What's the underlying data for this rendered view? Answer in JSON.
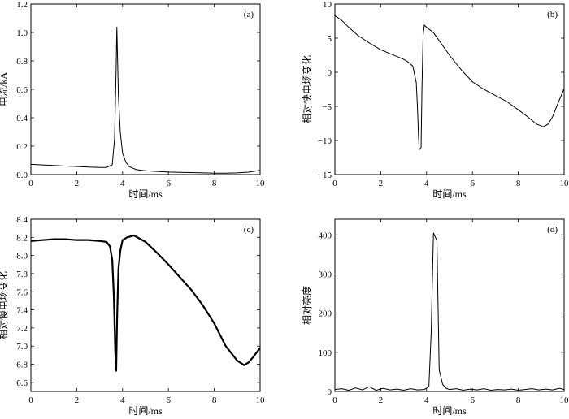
{
  "chart_data": [
    {
      "id": "a",
      "type": "line",
      "label": "(a)",
      "xlabel": "时间/ms",
      "ylabel": "电流/kA",
      "xlim": [
        0,
        10
      ],
      "ylim": [
        0,
        1.2
      ],
      "xticks": [
        0,
        2,
        4,
        6,
        8,
        10
      ],
      "yticks": [
        0.0,
        0.2,
        0.4,
        0.6,
        0.8,
        1.0,
        1.2
      ],
      "ytick_labels": [
        "0.0",
        "0.2",
        "0.4",
        "0.6",
        "0.8",
        "1.0",
        "1.2"
      ],
      "x": [
        0,
        0.5,
        1,
        1.5,
        2,
        2.5,
        3,
        3.3,
        3.55,
        3.65,
        3.72,
        3.75,
        3.78,
        3.82,
        3.9,
        4.0,
        4.15,
        4.3,
        4.6,
        5.0,
        5.5,
        6,
        6.5,
        7,
        7.5,
        8,
        8.5,
        9,
        9.5,
        10
      ],
      "y": [
        0.072,
        0.068,
        0.064,
        0.06,
        0.057,
        0.053,
        0.05,
        0.05,
        0.07,
        0.25,
        0.75,
        1.04,
        0.82,
        0.55,
        0.3,
        0.15,
        0.085,
        0.055,
        0.035,
        0.027,
        0.022,
        0.018,
        0.016,
        0.014,
        0.012,
        0.01,
        0.01,
        0.012,
        0.017,
        0.03
      ]
    },
    {
      "id": "b",
      "type": "line",
      "label": "(b)",
      "xlabel": "时间/ms",
      "ylabel": "相对快电场变化",
      "xlim": [
        0,
        10
      ],
      "ylim": [
        -15,
        10
      ],
      "xticks": [
        0,
        2,
        4,
        6,
        8,
        10
      ],
      "yticks": [
        -15,
        -10,
        -5,
        0,
        5,
        10
      ],
      "ytick_labels": [
        "−15",
        "−10",
        "−5",
        "0",
        "5",
        "10"
      ],
      "x": [
        0,
        0.3,
        0.6,
        1,
        1.5,
        2,
        2.5,
        3,
        3.2,
        3.4,
        3.55,
        3.6,
        3.65,
        3.68,
        3.72,
        3.76,
        3.8,
        3.85,
        3.9,
        4.0,
        4.3,
        4.6,
        5.0,
        5.5,
        6,
        6.5,
        7,
        7.5,
        8,
        8.4,
        8.8,
        9.1,
        9.3,
        9.5,
        9.7,
        10
      ],
      "y": [
        8.3,
        7.6,
        6.6,
        5.4,
        4.3,
        3.3,
        2.6,
        1.9,
        1.5,
        0.9,
        -1.5,
        -5,
        -9.5,
        -11.3,
        -11.3,
        -11.0,
        -2.0,
        5.5,
        6.9,
        6.6,
        5.8,
        4.4,
        2.5,
        0.4,
        -1.4,
        -2.5,
        -3.4,
        -4.3,
        -5.5,
        -6.5,
        -7.6,
        -8.0,
        -7.6,
        -6.5,
        -4.8,
        -2.4
      ]
    },
    {
      "id": "c",
      "type": "line",
      "label": "(c)",
      "xlabel": "时间/ms",
      "ylabel": "相对慢电场变化",
      "xlim": [
        0,
        10
      ],
      "ylim": [
        6.5,
        8.4
      ],
      "xticks": [
        0,
        2,
        4,
        6,
        8,
        10
      ],
      "yticks": [
        6.6,
        6.8,
        7.0,
        7.2,
        7.4,
        7.6,
        7.8,
        8.0,
        8.2,
        8.4
      ],
      "ytick_labels": [
        "6.6",
        "6.8",
        "7.0",
        "7.2",
        "7.4",
        "7.6",
        "7.8",
        "8.0",
        "8.2",
        "8.4"
      ],
      "x": [
        0,
        0.5,
        1,
        1.5,
        2,
        2.5,
        3,
        3.3,
        3.45,
        3.55,
        3.62,
        3.68,
        3.72,
        3.76,
        3.82,
        3.9,
        4.0,
        4.2,
        4.5,
        5,
        5.5,
        6,
        6.5,
        7,
        7.5,
        8,
        8.5,
        9,
        9.3,
        9.5,
        9.7,
        10
      ],
      "y": [
        8.16,
        8.17,
        8.18,
        8.18,
        8.17,
        8.17,
        8.16,
        8.15,
        8.1,
        7.95,
        7.55,
        6.95,
        6.72,
        7.3,
        7.85,
        8.05,
        8.17,
        8.2,
        8.22,
        8.15,
        8.03,
        7.9,
        7.76,
        7.62,
        7.45,
        7.25,
        7.0,
        6.84,
        6.79,
        6.82,
        6.88,
        6.98
      ]
    },
    {
      "id": "d",
      "type": "line",
      "label": "(d)",
      "xlabel": "时间/ms",
      "ylabel": "相对亮度",
      "xlim": [
        0,
        10
      ],
      "ylim": [
        0,
        440
      ],
      "xticks": [
        0,
        2,
        4,
        6,
        8,
        10
      ],
      "yticks": [
        0,
        100,
        200,
        300,
        400
      ],
      "ytick_labels": [
        "0",
        "100",
        "200",
        "300",
        "400"
      ],
      "x": [
        0,
        0.3,
        0.6,
        0.9,
        1.2,
        1.5,
        1.8,
        2.1,
        2.4,
        2.7,
        3.0,
        3.3,
        3.6,
        3.9,
        4.1,
        4.2,
        4.3,
        4.45,
        4.55,
        4.7,
        4.85,
        5.0,
        5.3,
        5.6,
        5.9,
        6.2,
        6.5,
        6.8,
        7.1,
        7.4,
        7.7,
        8.0,
        8.3,
        8.6,
        8.9,
        9.2,
        9.5,
        9.8,
        10
      ],
      "y": [
        5,
        7,
        3,
        9,
        4,
        12,
        3,
        8,
        4,
        6,
        3,
        7,
        4,
        5,
        12,
        150,
        405,
        385,
        55,
        18,
        8,
        5,
        7,
        3,
        6,
        4,
        7,
        3,
        5,
        4,
        6,
        3,
        5,
        7,
        4,
        6,
        4,
        8,
        5
      ]
    }
  ]
}
